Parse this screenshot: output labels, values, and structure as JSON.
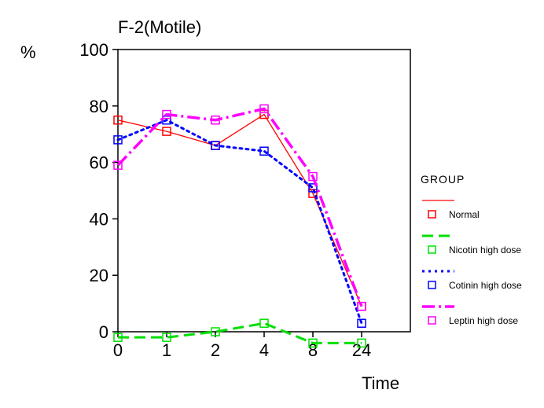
{
  "chart_data": {
    "type": "line",
    "title": "F-2(Motile)",
    "ylabel": "%",
    "xlabel": "Time",
    "categories": [
      "0",
      "1",
      "2",
      "4",
      "8",
      "24"
    ],
    "ylim": [
      0,
      100
    ],
    "yticks": [
      0,
      20,
      40,
      60,
      80,
      100
    ],
    "grid": false,
    "legend": {
      "title": "GROUP",
      "position": "right"
    },
    "series": [
      {
        "name": "Normal",
        "color": "#ff0000",
        "line_style": "solid",
        "values": [
          75,
          71,
          66,
          77,
          49,
          9
        ]
      },
      {
        "name": "Nicotin high dose",
        "color": "#00e000",
        "line_style": "dashed",
        "values": [
          -2,
          -2,
          0,
          3,
          -4,
          -4
        ]
      },
      {
        "name": "Cotinin high dose",
        "color": "#0000ff",
        "line_style": "dotted",
        "values": [
          68,
          75,
          66,
          64,
          51,
          3
        ]
      },
      {
        "name": "Leptin high dose",
        "color": "#ff00ff",
        "line_style": "dashdot",
        "values": [
          59,
          77,
          75,
          79,
          55,
          9
        ]
      }
    ]
  }
}
